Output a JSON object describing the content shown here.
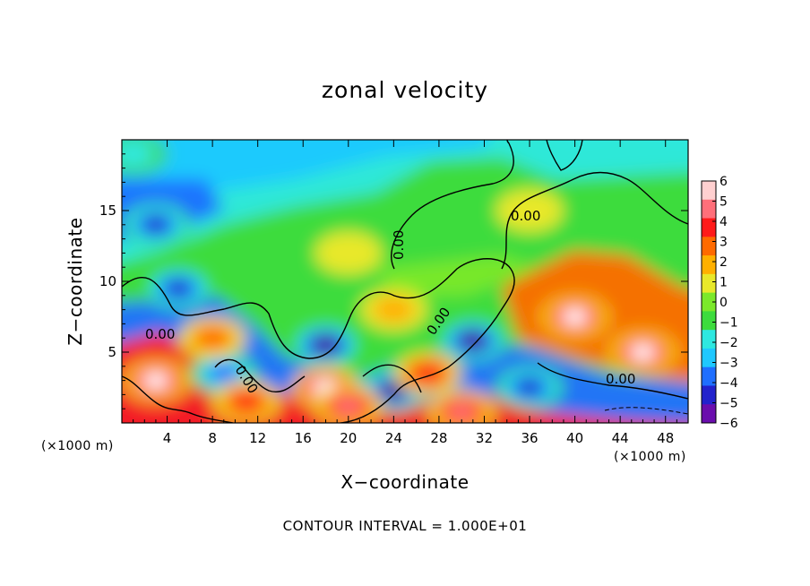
{
  "chart_data": {
    "type": "heatmap",
    "title": "zonal velocity",
    "xlabel": "X−coordinate",
    "ylabel": "Z−coordinate",
    "x_unit": "(×1000 m)",
    "y_unit": "(×1000 m)",
    "xlim": [
      0,
      50
    ],
    "ylim": [
      0,
      20
    ],
    "x_ticks": [
      4,
      8,
      12,
      16,
      20,
      24,
      28,
      32,
      36,
      40,
      44,
      48
    ],
    "y_ticks": [
      5,
      10,
      15
    ],
    "colorbar": {
      "ticks": [
        6,
        5,
        4,
        3,
        2,
        1,
        0,
        "−1",
        "−2",
        "−3",
        "−4",
        "−5",
        "−6"
      ],
      "range": [
        -6,
        6
      ],
      "colors": [
        "#6a0dad",
        "#2222cc",
        "#1f6fff",
        "#1fc8ff",
        "#2ee8e0",
        "#3ddc3d",
        "#7be82a",
        "#e8e82a",
        "#ffb000",
        "#ff6a00",
        "#ff1a1a",
        "#ff6f7a",
        "#ffd0d0"
      ]
    },
    "contour_labels": [
      "0.00",
      "0.00",
      "0.00",
      "0.00",
      "0.00",
      "0.00"
    ],
    "features": [
      {
        "kind": "low",
        "x": 5,
        "z": 9.5,
        "value": -5
      },
      {
        "kind": "low",
        "x": 3,
        "z": 14,
        "value": -5
      },
      {
        "kind": "low",
        "x": 18,
        "z": 5.5,
        "value": -6
      },
      {
        "kind": "low",
        "x": 31,
        "z": 5.8,
        "value": -6
      },
      {
        "kind": "low",
        "x": 24,
        "z": 2.3,
        "value": -6
      },
      {
        "kind": "low",
        "x": 9,
        "z": 3.5,
        "value": -4
      },
      {
        "kind": "low",
        "x": 36,
        "z": 2.5,
        "value": -5
      },
      {
        "kind": "low",
        "x": 1,
        "z": 19,
        "value": -2
      },
      {
        "kind": "high",
        "x": 40,
        "z": 7.5,
        "value": 6
      },
      {
        "kind": "high",
        "x": 46,
        "z": 5,
        "value": 6
      },
      {
        "kind": "high",
        "x": 3,
        "z": 3,
        "value": 6
      },
      {
        "kind": "high",
        "x": 18,
        "z": 2.5,
        "value": 6
      },
      {
        "kind": "high",
        "x": 20,
        "z": 1.2,
        "value": 5
      },
      {
        "kind": "high",
        "x": 11,
        "z": 1.5,
        "value": 4
      },
      {
        "kind": "high",
        "x": 30,
        "z": 0.8,
        "value": 5
      },
      {
        "kind": "high",
        "x": 27,
        "z": 3.5,
        "value": 4
      },
      {
        "kind": "high",
        "x": 24,
        "z": 8,
        "value": 2
      },
      {
        "kind": "high",
        "x": 8,
        "z": 6,
        "value": 3
      },
      {
        "kind": "high",
        "x": 36,
        "z": 15,
        "value": 1
      },
      {
        "kind": "high",
        "x": 20,
        "z": 12,
        "value": 0.5
      }
    ]
  },
  "footer": "CONTOUR INTERVAL = 1.000E+01"
}
